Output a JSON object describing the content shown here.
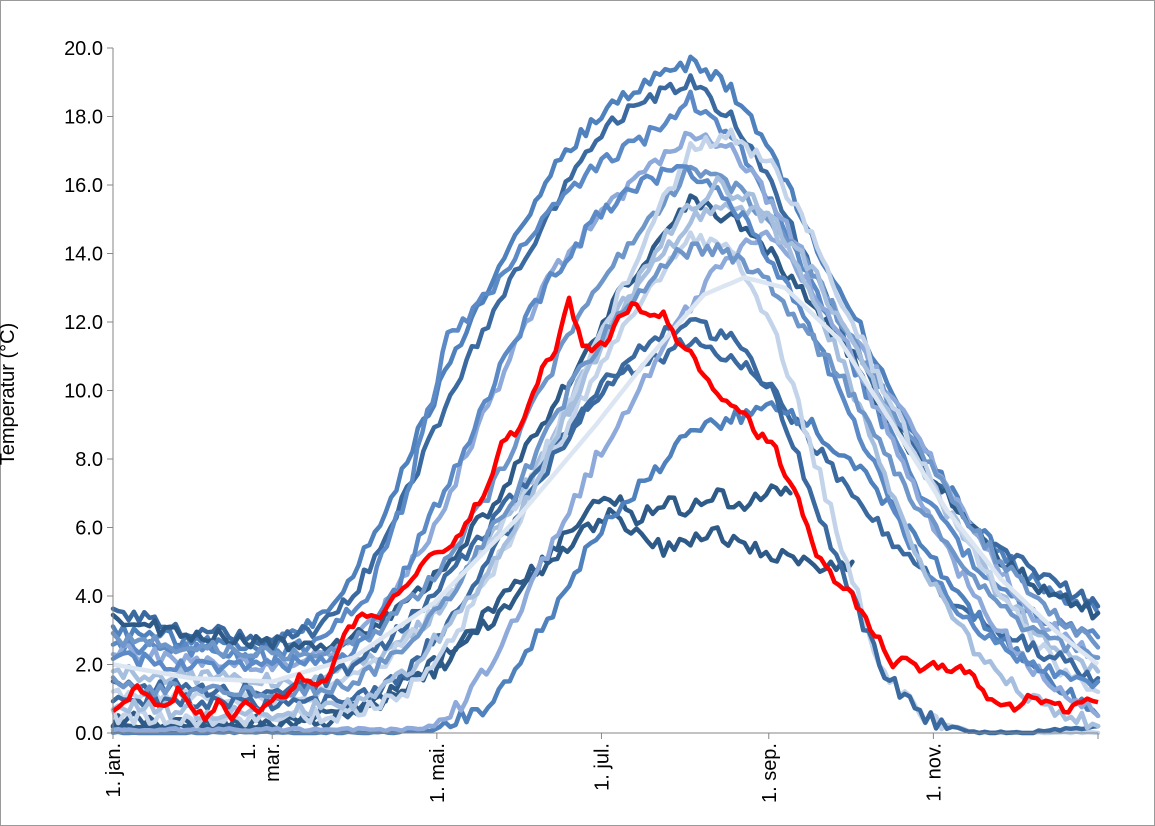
{
  "chart_data": {
    "type": "line",
    "title": "",
    "ylabel": "Temperatur (°C)",
    "xlabel": "",
    "ylim": [
      0,
      20
    ],
    "yticks": [
      "0.0",
      "2.0",
      "4.0",
      "6.0",
      "8.0",
      "10.0",
      "12.0",
      "14.0",
      "16.0",
      "18.0",
      "20.0"
    ],
    "xlim": [
      1,
      366
    ],
    "xticks": [
      {
        "day": 1,
        "label": "1. jan."
      },
      {
        "day": 60,
        "label": "1.\nmar."
      },
      {
        "day": 121,
        "label": "1. mai."
      },
      {
        "day": 182,
        "label": "1. jul."
      },
      {
        "day": 244,
        "label": "1. sep."
      },
      {
        "day": 305,
        "label": "1. nov."
      }
    ],
    "grid": false,
    "legend": "none",
    "colors": {
      "highlight": "#ff0000",
      "mean": "#dce6f2",
      "palette": [
        "#2e5a88",
        "#3b6aa0",
        "#4f81bd",
        "#5b8ac6",
        "#6f96c8",
        "#8eaadb",
        "#a6bfde",
        "#c3d4ea"
      ]
    },
    "series": [
      {
        "color": "#4f81bd",
        "x": [
          1,
          30,
          60,
          75,
          90,
          110,
          130,
          150,
          165,
          180,
          200,
          215,
          230,
          245,
          260,
          280,
          300,
          320,
          340,
          366
        ],
        "y": [
          3.0,
          2.7,
          2.5,
          3.2,
          4.5,
          8.0,
          11.5,
          14.5,
          16.5,
          18.0,
          19.0,
          19.6,
          18.8,
          17.0,
          14.5,
          11.5,
          8.5,
          6.0,
          4.5,
          3.5
        ]
      },
      {
        "color": "#3b6aa0",
        "x": [
          1,
          30,
          60,
          75,
          90,
          110,
          130,
          150,
          165,
          180,
          200,
          215,
          230,
          245,
          260,
          280,
          300,
          320,
          340,
          366
        ],
        "y": [
          3.6,
          3.0,
          2.7,
          3.0,
          4.0,
          7.0,
          10.5,
          13.5,
          15.5,
          17.5,
          18.5,
          19.0,
          18.0,
          16.0,
          13.5,
          10.5,
          8.0,
          6.0,
          4.8,
          3.7
        ]
      },
      {
        "color": "#5b8ac6",
        "x": [
          1,
          30,
          60,
          80,
          95,
          110,
          125,
          140,
          160,
          180,
          200,
          215,
          230,
          245,
          260,
          280,
          300,
          320,
          340,
          366
        ],
        "y": [
          2.6,
          2.4,
          2.2,
          2.8,
          4.0,
          7.0,
          11.5,
          12.8,
          15.0,
          16.5,
          17.5,
          18.5,
          17.5,
          15.5,
          13.0,
          10.0,
          7.0,
          5.0,
          3.5,
          2.8
        ]
      },
      {
        "color": "#8eaadb",
        "x": [
          1,
          30,
          60,
          80,
          100,
          120,
          140,
          160,
          180,
          200,
          215,
          230,
          245,
          260,
          280,
          300,
          320,
          340,
          366
        ],
        "y": [
          2.4,
          2.1,
          2.0,
          2.3,
          3.5,
          6.0,
          9.5,
          13.0,
          15.0,
          16.5,
          17.5,
          17.0,
          15.5,
          13.5,
          11.0,
          8.5,
          6.0,
          3.5,
          2.2
        ]
      },
      {
        "color": "#2e5a88",
        "x": [
          1,
          30,
          60,
          80,
          100,
          120,
          140,
          160,
          175,
          190,
          205,
          215,
          230,
          245,
          260,
          275,
          290,
          310,
          330,
          350,
          366
        ],
        "y": [
          3.3,
          2.9,
          2.6,
          2.6,
          3.2,
          4.5,
          6.5,
          9.0,
          11.0,
          13.0,
          14.5,
          15.5,
          15.0,
          14.0,
          12.5,
          11.0,
          9.0,
          7.0,
          5.0,
          4.0,
          3.5
        ]
      },
      {
        "color": "#6f96c8",
        "x": [
          1,
          30,
          60,
          80,
          100,
          120,
          140,
          160,
          175,
          190,
          205,
          215,
          230,
          245,
          260,
          275,
          290,
          310,
          330,
          350,
          366
        ],
        "y": [
          2.8,
          2.5,
          2.3,
          2.4,
          3.0,
          4.5,
          7.0,
          10.0,
          12.5,
          14.0,
          15.5,
          16.5,
          16.0,
          15.0,
          13.5,
          11.5,
          9.5,
          7.0,
          5.0,
          3.5,
          2.5
        ]
      },
      {
        "color": "#a6bfde",
        "x": [
          1,
          30,
          60,
          80,
          100,
          120,
          140,
          160,
          175,
          190,
          205,
          215,
          230,
          245,
          260,
          275,
          290,
          310,
          330,
          350,
          366
        ],
        "y": [
          1.8,
          1.6,
          1.5,
          1.6,
          2.2,
          3.5,
          5.5,
          8.0,
          10.5,
          12.5,
          14.0,
          15.0,
          15.5,
          15.0,
          13.5,
          11.5,
          9.0,
          6.5,
          4.0,
          2.5,
          1.8
        ]
      },
      {
        "color": "#c3d4ea",
        "x": [
          1,
          30,
          60,
          80,
          100,
          120,
          140,
          160,
          175,
          190,
          205,
          215,
          230,
          245,
          260,
          275,
          290,
          310,
          330,
          350,
          366
        ],
        "y": [
          1.2,
          1.0,
          0.9,
          1.2,
          2.0,
          3.5,
          5.5,
          8.0,
          10.5,
          13.0,
          15.5,
          17.0,
          17.5,
          16.5,
          14.5,
          12.0,
          9.5,
          6.5,
          4.0,
          2.0,
          1.2
        ]
      },
      {
        "color": "#3b6aa0",
        "x": [
          1,
          30,
          60,
          80,
          100,
          120,
          140,
          160,
          175,
          190,
          205,
          215,
          230,
          245,
          260,
          275,
          290,
          310,
          330,
          350,
          366
        ],
        "y": [
          1.5,
          1.3,
          1.2,
          1.5,
          2.5,
          4.0,
          6.0,
          8.0,
          9.5,
          10.5,
          11.0,
          11.5,
          11.0,
          10.0,
          8.5,
          7.0,
          5.5,
          4.0,
          3.0,
          2.2,
          1.6
        ]
      },
      {
        "color": "#2e5a88",
        "x": [
          1,
          30,
          60,
          80,
          100,
          120,
          140,
          160,
          175,
          185,
          195,
          205,
          215,
          225,
          235,
          245,
          252
        ],
        "y": [
          0.4,
          0.3,
          0.3,
          0.5,
          1.0,
          2.0,
          3.5,
          5.0,
          6.3,
          7.0,
          6.2,
          6.8,
          6.5,
          7.0,
          6.5,
          7.2,
          7.0
        ]
      },
      {
        "color": "#2e5a88",
        "x": [
          1,
          30,
          60,
          80,
          100,
          120,
          140,
          160,
          175,
          185,
          195,
          205,
          215,
          225,
          235,
          245,
          255,
          265,
          275
        ],
        "y": [
          0.2,
          0.2,
          0.2,
          0.3,
          0.8,
          1.8,
          3.2,
          4.8,
          5.8,
          6.4,
          5.8,
          5.4,
          5.6,
          5.8,
          5.5,
          5.2,
          5.0,
          4.8,
          5.0
        ]
      },
      {
        "color": "#4f81bd",
        "x": [
          1,
          30,
          60,
          90,
          105,
          120,
          140,
          160,
          180,
          200,
          215,
          230,
          245,
          260,
          280,
          300,
          320,
          340,
          366
        ],
        "y": [
          0.0,
          0.0,
          0.0,
          0.0,
          0.0,
          0.1,
          0.8,
          3.0,
          5.8,
          7.5,
          8.8,
          9.2,
          9.5,
          9.0,
          7.5,
          5.5,
          3.5,
          2.0,
          0.5
        ]
      },
      {
        "color": "#8eaadb",
        "x": [
          1,
          30,
          60,
          90,
          110,
          120,
          130,
          145,
          160,
          180,
          200,
          215,
          230,
          245,
          260,
          275,
          290,
          305,
          320,
          340,
          366
        ],
        "y": [
          0.1,
          0.1,
          0.1,
          0.1,
          0.1,
          0.2,
          0.8,
          2.5,
          5.0,
          8.0,
          10.5,
          12.5,
          14.0,
          14.5,
          13.0,
          11.0,
          8.5,
          6.0,
          4.0,
          2.0,
          0.5
        ]
      },
      {
        "color": "#c3d4ea",
        "x": [
          1,
          30,
          60,
          90,
          110,
          125,
          140,
          160,
          180,
          200,
          215,
          230,
          245,
          255,
          265,
          275,
          285,
          300,
          320,
          340,
          366
        ],
        "y": [
          0.5,
          0.4,
          0.4,
          0.6,
          1.2,
          2.5,
          4.5,
          7.5,
          10.5,
          13.0,
          14.5,
          14.0,
          12.0,
          9.5,
          7.0,
          4.5,
          2.0,
          0.5,
          0.0,
          0.0,
          0.0
        ]
      },
      {
        "color": "#3b6aa0",
        "x": [
          1,
          30,
          60,
          90,
          110,
          125,
          140,
          160,
          180,
          200,
          215,
          230,
          245,
          255,
          265,
          275,
          285,
          300,
          320,
          340,
          366
        ],
        "y": [
          1.0,
          0.9,
          0.8,
          1.0,
          1.8,
          3.2,
          5.0,
          7.5,
          10.0,
          11.5,
          12.0,
          11.5,
          10.0,
          8.0,
          6.0,
          4.0,
          2.0,
          0.5,
          0.0,
          0.0,
          0.2
        ]
      },
      {
        "color": "#5b8ac6",
        "x": [
          1,
          30,
          60,
          90,
          105,
          120,
          135,
          150,
          165,
          180,
          195,
          210,
          225,
          240,
          255,
          270,
          285,
          300,
          320,
          340,
          366
        ],
        "y": [
          2.2,
          2.0,
          1.9,
          2.4,
          4.0,
          6.5,
          9.0,
          11.5,
          13.5,
          15.0,
          16.0,
          16.5,
          16.0,
          14.5,
          12.5,
          10.0,
          7.5,
          5.0,
          3.0,
          2.0,
          1.5
        ]
      },
      {
        "color": "#a6bfde",
        "x": [
          1,
          30,
          60,
          90,
          110,
          130,
          150,
          170,
          190,
          210,
          225,
          240,
          255,
          270,
          285,
          300,
          320,
          340,
          366
        ],
        "y": [
          0.8,
          0.6,
          0.6,
          0.9,
          1.8,
          3.5,
          6.0,
          9.5,
          12.5,
          15.0,
          16.0,
          15.5,
          13.5,
          11.0,
          8.0,
          5.0,
          2.5,
          1.0,
          0.2
        ]
      },
      {
        "color": "#6f96c8",
        "x": [
          1,
          30,
          60,
          90,
          110,
          130,
          150,
          170,
          190,
          210,
          225,
          240,
          255,
          270,
          285,
          300,
          320,
          340,
          366
        ],
        "y": [
          1.4,
          1.2,
          1.1,
          1.4,
          2.6,
          4.5,
          7.0,
          10.0,
          12.5,
          14.0,
          14.2,
          13.5,
          12.0,
          10.5,
          8.5,
          6.5,
          4.5,
          3.0,
          2.2
        ]
      }
    ],
    "mean_series": {
      "color": "#dce6f2",
      "x": [
        1,
        30,
        60,
        90,
        120,
        150,
        180,
        200,
        220,
        235,
        250,
        270,
        290,
        310,
        330,
        350,
        366
      ],
      "y": [
        2.0,
        1.6,
        1.5,
        2.2,
        3.8,
        6.2,
        9.0,
        11.0,
        12.8,
        13.3,
        13.0,
        11.5,
        9.0,
        6.5,
        4.5,
        3.0,
        2.0
      ]
    },
    "highlight_series": {
      "color": "#ff0000",
      "x": [
        1,
        5,
        10,
        15,
        20,
        25,
        30,
        35,
        40,
        45,
        50,
        55,
        60,
        65,
        70,
        75,
        80,
        85,
        90,
        95,
        100,
        105,
        110,
        115,
        120,
        125,
        130,
        135,
        140,
        145,
        150,
        155,
        160,
        165,
        170,
        175,
        180,
        185,
        190,
        195,
        200,
        205,
        210,
        215,
        220,
        225,
        230,
        235,
        240,
        245,
        250,
        255,
        260,
        265,
        270,
        275,
        280,
        285,
        290,
        295,
        300,
        305,
        310,
        315,
        320,
        325,
        330,
        335,
        340,
        345,
        350,
        355,
        360,
        366
      ],
      "y": [
        0.7,
        0.8,
        1.5,
        0.9,
        0.7,
        1.2,
        0.8,
        0.4,
        0.9,
        0.5,
        0.8,
        0.6,
        1.0,
        1.0,
        1.6,
        1.4,
        1.5,
        2.6,
        3.2,
        3.5,
        3.3,
        4.0,
        4.3,
        4.8,
        5.3,
        5.4,
        5.8,
        6.6,
        7.2,
        8.6,
        8.7,
        9.5,
        10.6,
        11.2,
        12.6,
        11.4,
        11.2,
        11.5,
        12.3,
        12.5,
        12.1,
        12.2,
        11.5,
        11.1,
        10.5,
        9.8,
        9.6,
        9.3,
        8.7,
        8.6,
        7.5,
        6.8,
        5.5,
        4.8,
        4.3,
        4.0,
        3.3,
        2.7,
        2.0,
        2.3,
        1.9,
        2.1,
        1.8,
        2.0,
        1.6,
        1.0,
        0.8,
        0.7,
        1.0,
        0.9,
        0.8,
        0.7,
        1.0,
        0.9
      ]
    }
  }
}
